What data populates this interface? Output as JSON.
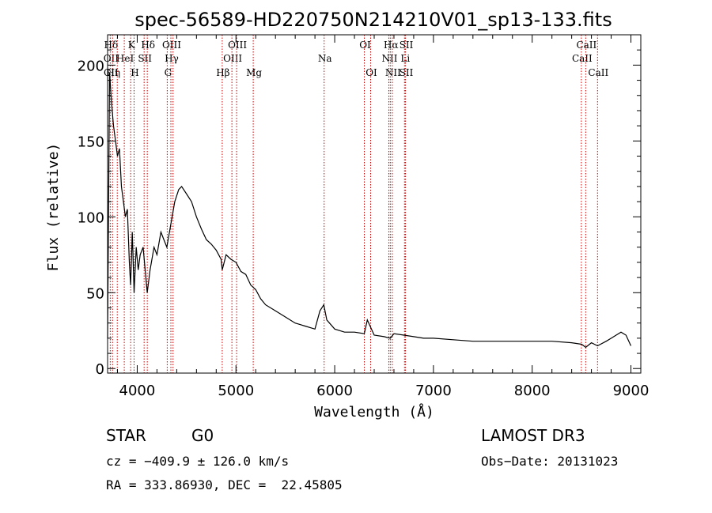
{
  "chart_data": {
    "type": "line",
    "title": "spec-56589-HD220750N214210V01_sp13-133.fits",
    "xlabel": "Wavelength (Å)",
    "ylabel": "Flux (relative)",
    "xlim": [
      3700,
      9100
    ],
    "ylim": [
      -3,
      220
    ],
    "xticks": [
      4000,
      5000,
      6000,
      7000,
      8000,
      9000
    ],
    "yticks": [
      0,
      50,
      100,
      150,
      200
    ],
    "series": [
      {
        "name": "spectrum",
        "x": [
          3700,
          3720,
          3740,
          3760,
          3780,
          3800,
          3820,
          3840,
          3860,
          3880,
          3900,
          3920,
          3933,
          3950,
          3968,
          3990,
          4010,
          4030,
          4060,
          4101,
          4130,
          4170,
          4200,
          4240,
          4270,
          4300,
          4340,
          4380,
          4420,
          4450,
          4500,
          4550,
          4600,
          4650,
          4700,
          4750,
          4800,
          4850,
          4861,
          4900,
          4950,
          5000,
          5050,
          5100,
          5150,
          5200,
          5250,
          5300,
          5400,
          5500,
          5600,
          5700,
          5800,
          5850,
          5890,
          5920,
          6000,
          6100,
          6200,
          6300,
          6330,
          6400,
          6500,
          6563,
          6600,
          6700,
          6800,
          6900,
          7000,
          7200,
          7400,
          7600,
          7800,
          8000,
          8200,
          8400,
          8500,
          8542,
          8600,
          8662,
          8750,
          8800,
          8850,
          8900,
          8950,
          9000
        ],
        "y": [
          20,
          195,
          175,
          160,
          150,
          140,
          145,
          120,
          110,
          100,
          105,
          70,
          55,
          90,
          50,
          80,
          65,
          75,
          80,
          50,
          65,
          80,
          75,
          90,
          85,
          80,
          95,
          110,
          118,
          120,
          115,
          110,
          100,
          92,
          85,
          82,
          78,
          72,
          65,
          75,
          72,
          70,
          64,
          62,
          55,
          52,
          46,
          42,
          38,
          34,
          30,
          28,
          26,
          38,
          42,
          32,
          26,
          24,
          24,
          23,
          32,
          22,
          21,
          20,
          23,
          22,
          21,
          20,
          20,
          19,
          18,
          18,
          18,
          18,
          18,
          17,
          16,
          14,
          17,
          15,
          18,
          20,
          22,
          24,
          22,
          15
        ]
      }
    ],
    "spectral_lines": [
      {
        "wavelength": 3727,
        "top": [
          "Hδ"
        ],
        "mid": [
          "OII"
        ],
        "low": [
          "CII"
        ]
      },
      {
        "wavelength": 3750,
        "top": [],
        "mid": [],
        "low": [
          "Hη"
        ]
      },
      {
        "wavelength": 3798,
        "top": [],
        "mid": [],
        "low": []
      },
      {
        "wavelength": 3869,
        "top": [],
        "mid": [
          "HeI"
        ],
        "low": []
      },
      {
        "wavelength": 3934,
        "top": [
          "K"
        ],
        "mid": [],
        "low": []
      },
      {
        "wavelength": 3968,
        "top": [],
        "mid": [],
        "low": [
          "H"
        ]
      },
      {
        "wavelength": 4070,
        "top": [],
        "mid": [
          "SII"
        ],
        "low": []
      },
      {
        "wavelength": 4102,
        "top": [
          "Hδ"
        ],
        "mid": [],
        "low": []
      },
      {
        "wavelength": 4304,
        "top": [],
        "mid": [],
        "low": [
          "G"
        ]
      },
      {
        "wavelength": 4341,
        "top": [
          "OIII"
        ],
        "mid": [
          "Hγ"
        ],
        "low": []
      },
      {
        "wavelength": 4363,
        "top": [],
        "mid": [],
        "low": []
      },
      {
        "wavelength": 4861,
        "top": [],
        "mid": [],
        "low": [
          "Hβ"
        ]
      },
      {
        "wavelength": 4959,
        "top": [],
        "mid": [
          "OIII"
        ],
        "low": []
      },
      {
        "wavelength": 5007,
        "top": [
          "OIII"
        ],
        "mid": [],
        "low": []
      },
      {
        "wavelength": 5175,
        "top": [],
        "mid": [],
        "low": [
          "Mg"
        ]
      },
      {
        "wavelength": 5893,
        "top": [],
        "mid": [
          "Na"
        ],
        "low": []
      },
      {
        "wavelength": 6300,
        "top": [
          "OI"
        ],
        "mid": [],
        "low": []
      },
      {
        "wavelength": 6364,
        "top": [],
        "mid": [],
        "low": [
          "OI"
        ]
      },
      {
        "wavelength": 6548,
        "top": [],
        "mid": [
          "NII"
        ],
        "low": []
      },
      {
        "wavelength": 6563,
        "top": [
          "Hα"
        ],
        "mid": [],
        "low": []
      },
      {
        "wavelength": 6583,
        "top": [],
        "mid": [],
        "low": [
          "NII"
        ]
      },
      {
        "wavelength": 6707,
        "top": [],
        "mid": [
          "Li"
        ],
        "low": []
      },
      {
        "wavelength": 6717,
        "top": [
          "SII"
        ],
        "mid": [],
        "low": [
          "SII"
        ]
      },
      {
        "wavelength": 8498,
        "top": [],
        "mid": [
          "CaII"
        ],
        "low": []
      },
      {
        "wavelength": 8542,
        "top": [
          "CaII"
        ],
        "mid": [],
        "low": []
      },
      {
        "wavelength": 8662,
        "top": [],
        "mid": [],
        "low": [
          "CaII"
        ]
      }
    ]
  },
  "footer": {
    "object_class": "STAR",
    "subclass": "G0",
    "survey": "LAMOST DR3",
    "redshift": "cz = −409.9 ± 126.0 km/s",
    "obs_date": "Obs−Date: 20131023",
    "coords": "RA = 333.86930, DEC =  22.45805"
  }
}
